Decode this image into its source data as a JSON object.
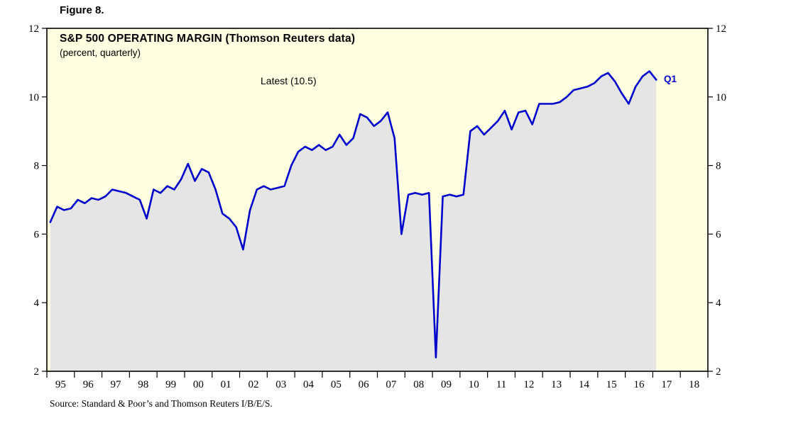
{
  "figure": {
    "label": "Figure 8."
  },
  "chart": {
    "title": "S&P 500 OPERATING MARGIN (Thomson Reuters data)",
    "subtitle": "(percent, quarterly)",
    "latest_annotation": "Latest (10.5)",
    "end_label": "Q1",
    "source": "Source: Standard & Poor’s and Thomson Reuters I/B/E/S."
  },
  "colors": {
    "line": "#0000CD",
    "plot_bg": "#FFFFE1",
    "area_fill": "#E5E5E5",
    "frame": "#000000",
    "tick_text": "#000000",
    "end_label_color": "#0000CD"
  },
  "chart_data": {
    "type": "line",
    "title": "S&P 500 OPERATING MARGIN (Thomson Reuters data)",
    "subtitle": "(percent, quarterly)",
    "ylabel": "percent",
    "ylim": [
      2,
      12
    ],
    "yticks": [
      2,
      4,
      6,
      8,
      10,
      12
    ],
    "ytick_labels": [
      "2",
      "4",
      "6",
      "8",
      "10",
      "12"
    ],
    "x_range": [
      1995,
      2019
    ],
    "x_tick_labels": [
      "95",
      "96",
      "97",
      "98",
      "99",
      "00",
      "01",
      "02",
      "03",
      "04",
      "05",
      "06",
      "07",
      "08",
      "09",
      "10",
      "11",
      "12",
      "13",
      "14",
      "15",
      "16",
      "17",
      "18"
    ],
    "grid": false,
    "legend": "none",
    "frequency": "quarterly",
    "latest_value": 10.5,
    "annotations": [
      {
        "text": "Latest (10.5)",
        "x": 2002.8,
        "y": 10.55
      },
      {
        "text": "Q1",
        "x": 2017.4,
        "y": 10.5
      }
    ],
    "series": [
      {
        "name": "S&P 500 operating margin (percent)",
        "start": "1995Q1",
        "end": "2017Q1",
        "values": [
          6.35,
          6.8,
          6.7,
          6.75,
          7.0,
          6.9,
          7.05,
          7.0,
          7.1,
          7.3,
          7.25,
          7.2,
          7.1,
          7.0,
          6.45,
          7.3,
          7.2,
          7.4,
          7.3,
          7.6,
          8.05,
          7.55,
          7.9,
          7.8,
          7.3,
          6.6,
          6.45,
          6.2,
          5.55,
          6.7,
          7.3,
          7.4,
          7.3,
          7.35,
          7.4,
          8.0,
          8.4,
          8.55,
          8.45,
          8.6,
          8.45,
          8.55,
          8.9,
          8.6,
          8.8,
          9.5,
          9.4,
          9.15,
          9.3,
          9.55,
          8.8,
          6.0,
          7.15,
          7.2,
          7.15,
          7.2,
          2.4,
          7.1,
          7.15,
          7.1,
          7.15,
          9.0,
          9.15,
          8.9,
          9.1,
          9.3,
          9.6,
          9.05,
          9.55,
          9.6,
          9.2,
          9.8,
          9.8,
          9.8,
          9.85,
          10.0,
          10.2,
          10.25,
          10.3,
          10.4,
          10.6,
          10.7,
          10.45,
          10.1,
          9.8,
          10.3,
          10.6,
          10.75,
          10.5
        ]
      }
    ]
  }
}
